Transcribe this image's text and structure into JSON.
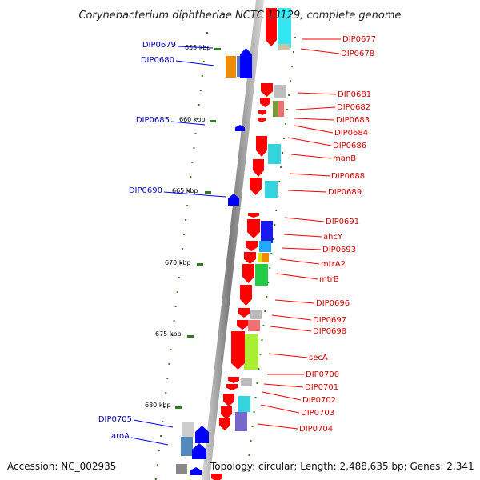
{
  "title": "Corynebacterium diphtheriae NCTC 13129, complete genome",
  "footer": {
    "accession": "Accession: NC_002935",
    "topology": "Topology: circular; Length: 2,488,635 bp; Genes: 2,341"
  },
  "ticks": [
    "655 kbp",
    "660 kbp",
    "665 kbp",
    "670 kbp",
    "675 kbp",
    "680 kbp"
  ],
  "genes_forward": [
    "DIP0677",
    "DIP0678",
    "DIP0681",
    "DIP0682",
    "DIP0683",
    "DIP0684",
    "DIP0686",
    "manB",
    "DIP0688",
    "DIP0689",
    "DIP0691",
    "ahcY",
    "DIP0693",
    "mtrA2",
    "mtrB",
    "DIP0696",
    "DIP0697",
    "DIP0698",
    "secA",
    "DIP0700",
    "DIP0701",
    "DIP0702",
    "DIP0703",
    "DIP0704"
  ],
  "genes_reverse": [
    "DIP0679",
    "DIP0680",
    "DIP0685",
    "DIP0690",
    "DIP0705",
    "aroA"
  ],
  "colors": {
    "forward_gene": "#ff0000",
    "reverse_gene": "#0000ff",
    "backbone": "#888888",
    "tick": "#2e7d1e",
    "label_forward": "#d40000",
    "label_reverse": "#0000b0"
  }
}
